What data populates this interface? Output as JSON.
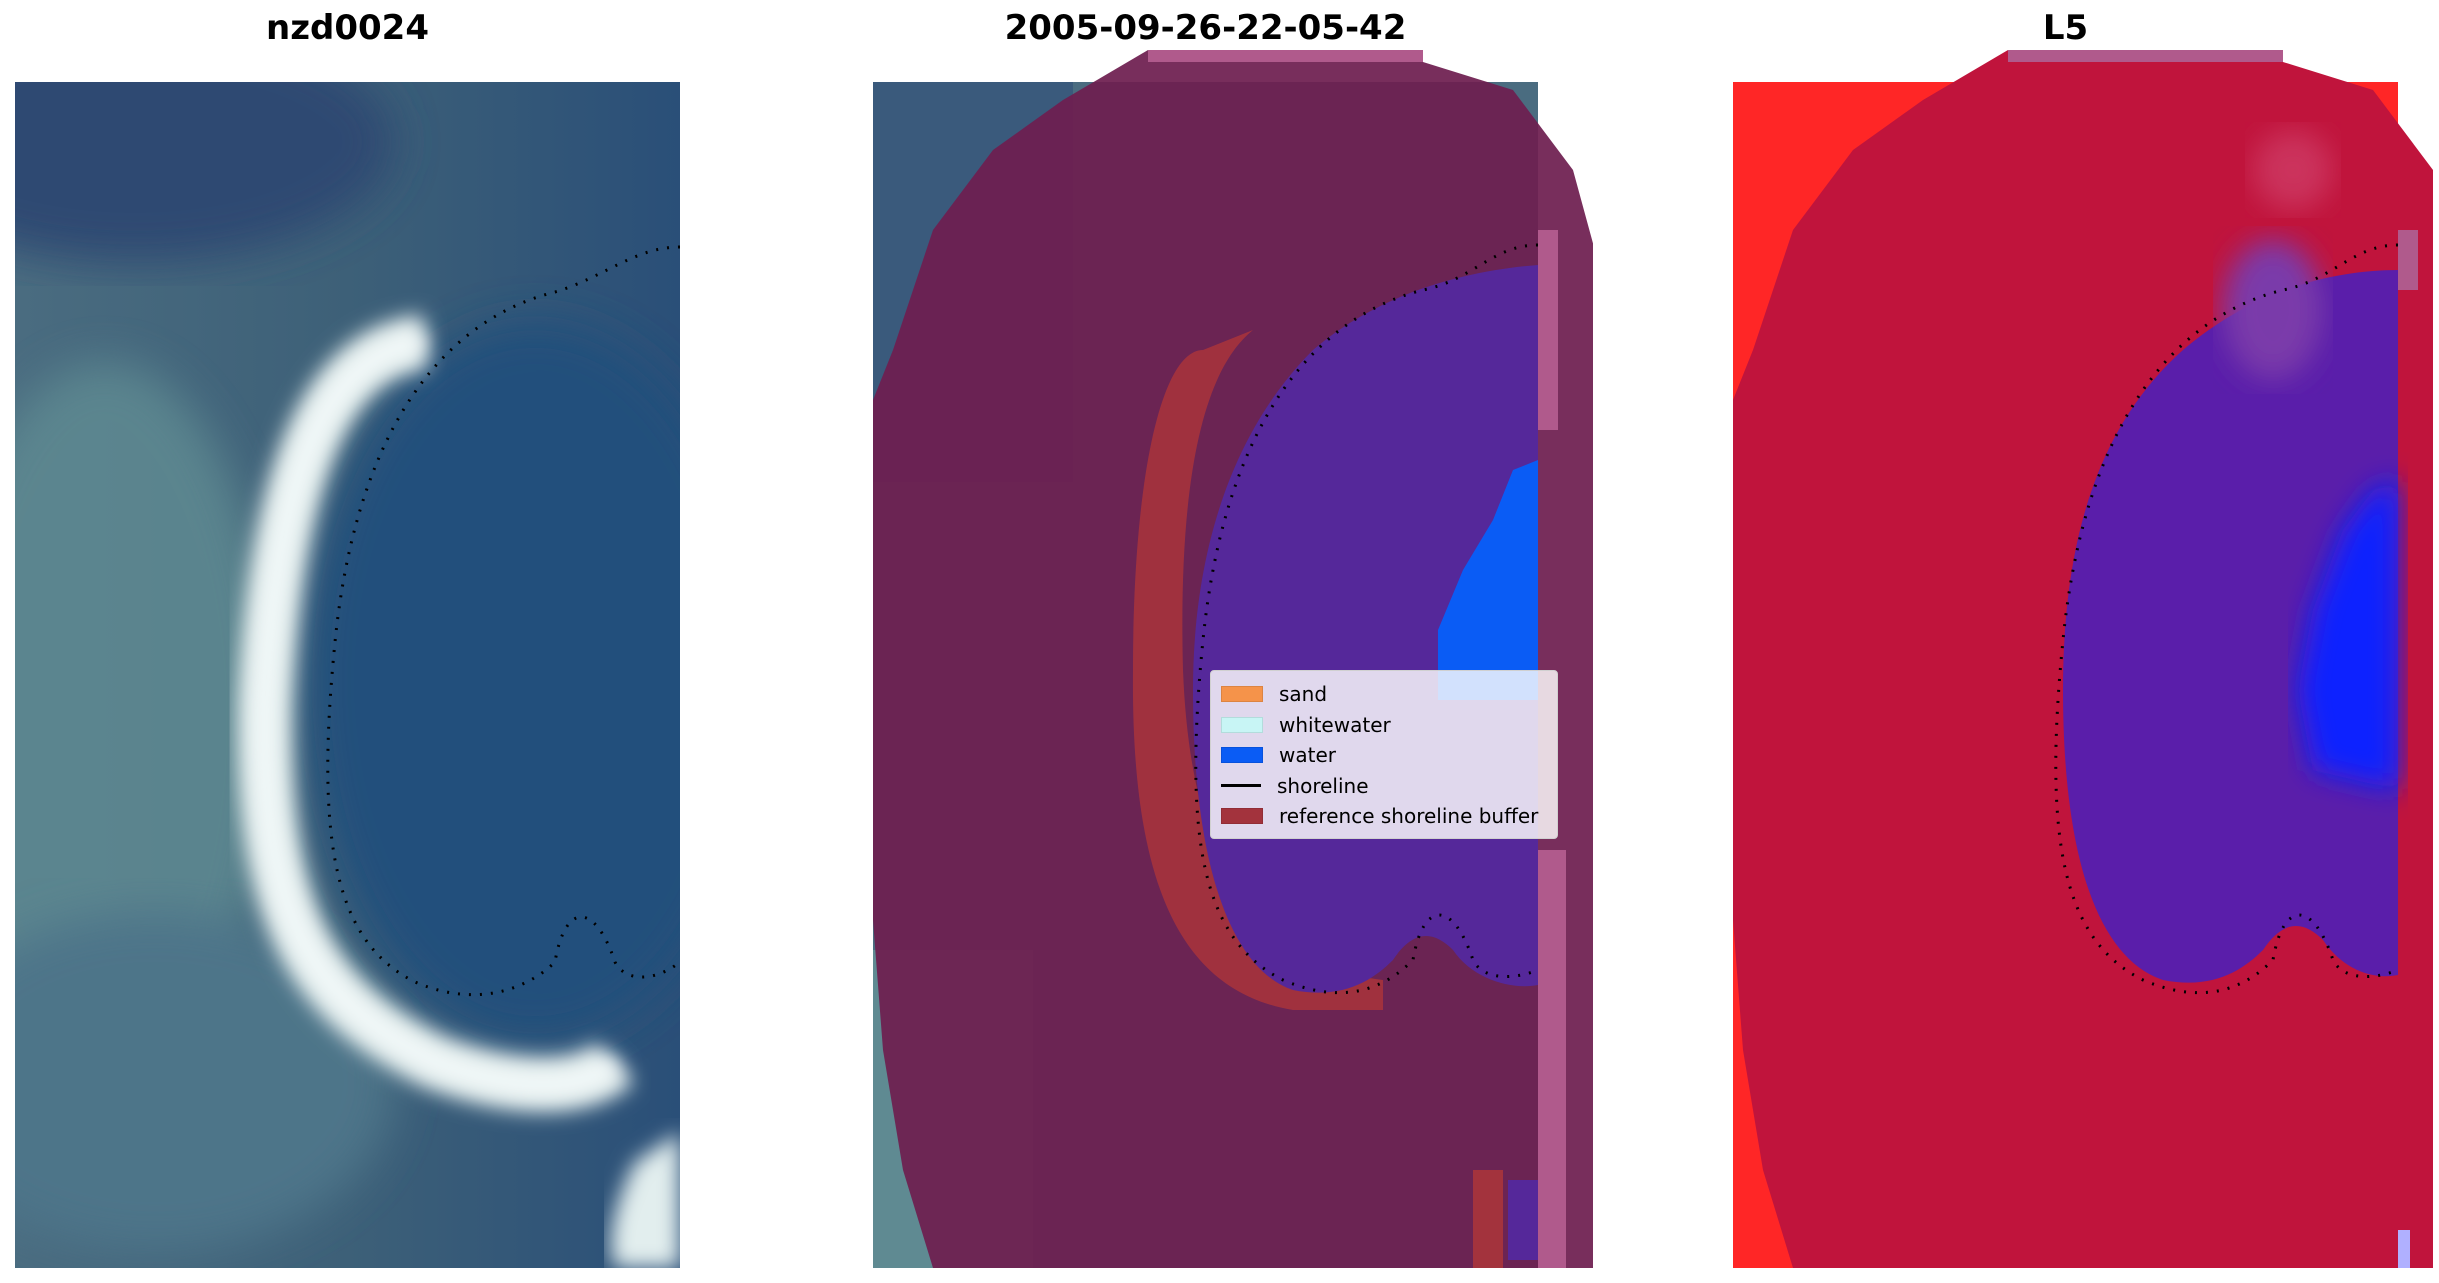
{
  "panels": [
    {
      "title": "nzd0024"
    },
    {
      "title": "2005-09-26-22-05-42"
    },
    {
      "title": "L5"
    }
  ],
  "legend": {
    "items": [
      {
        "label": "sand",
        "color": "#f5934a",
        "kind": "patch"
      },
      {
        "label": "whitewater",
        "color": "#c8f5f5",
        "kind": "patch"
      },
      {
        "label": "water",
        "color": "#0a5cf5",
        "kind": "patch"
      },
      {
        "label": "shoreline",
        "color": "#000000",
        "kind": "line"
      },
      {
        "label": "reference shoreline buffer",
        "color": "#a3333d",
        "kind": "patch"
      }
    ]
  },
  "colors": {
    "water_image": "#2e5078",
    "land_image": "#5a8090",
    "sand_bright": "#e8f0f0",
    "buffer_overlay": "#6e1e50",
    "water_class": "#55289a",
    "index_red": "#c0143c",
    "index_bright_red": "#ff2020",
    "index_blue": "#1020ff",
    "index_purple": "#5a1eaa"
  }
}
